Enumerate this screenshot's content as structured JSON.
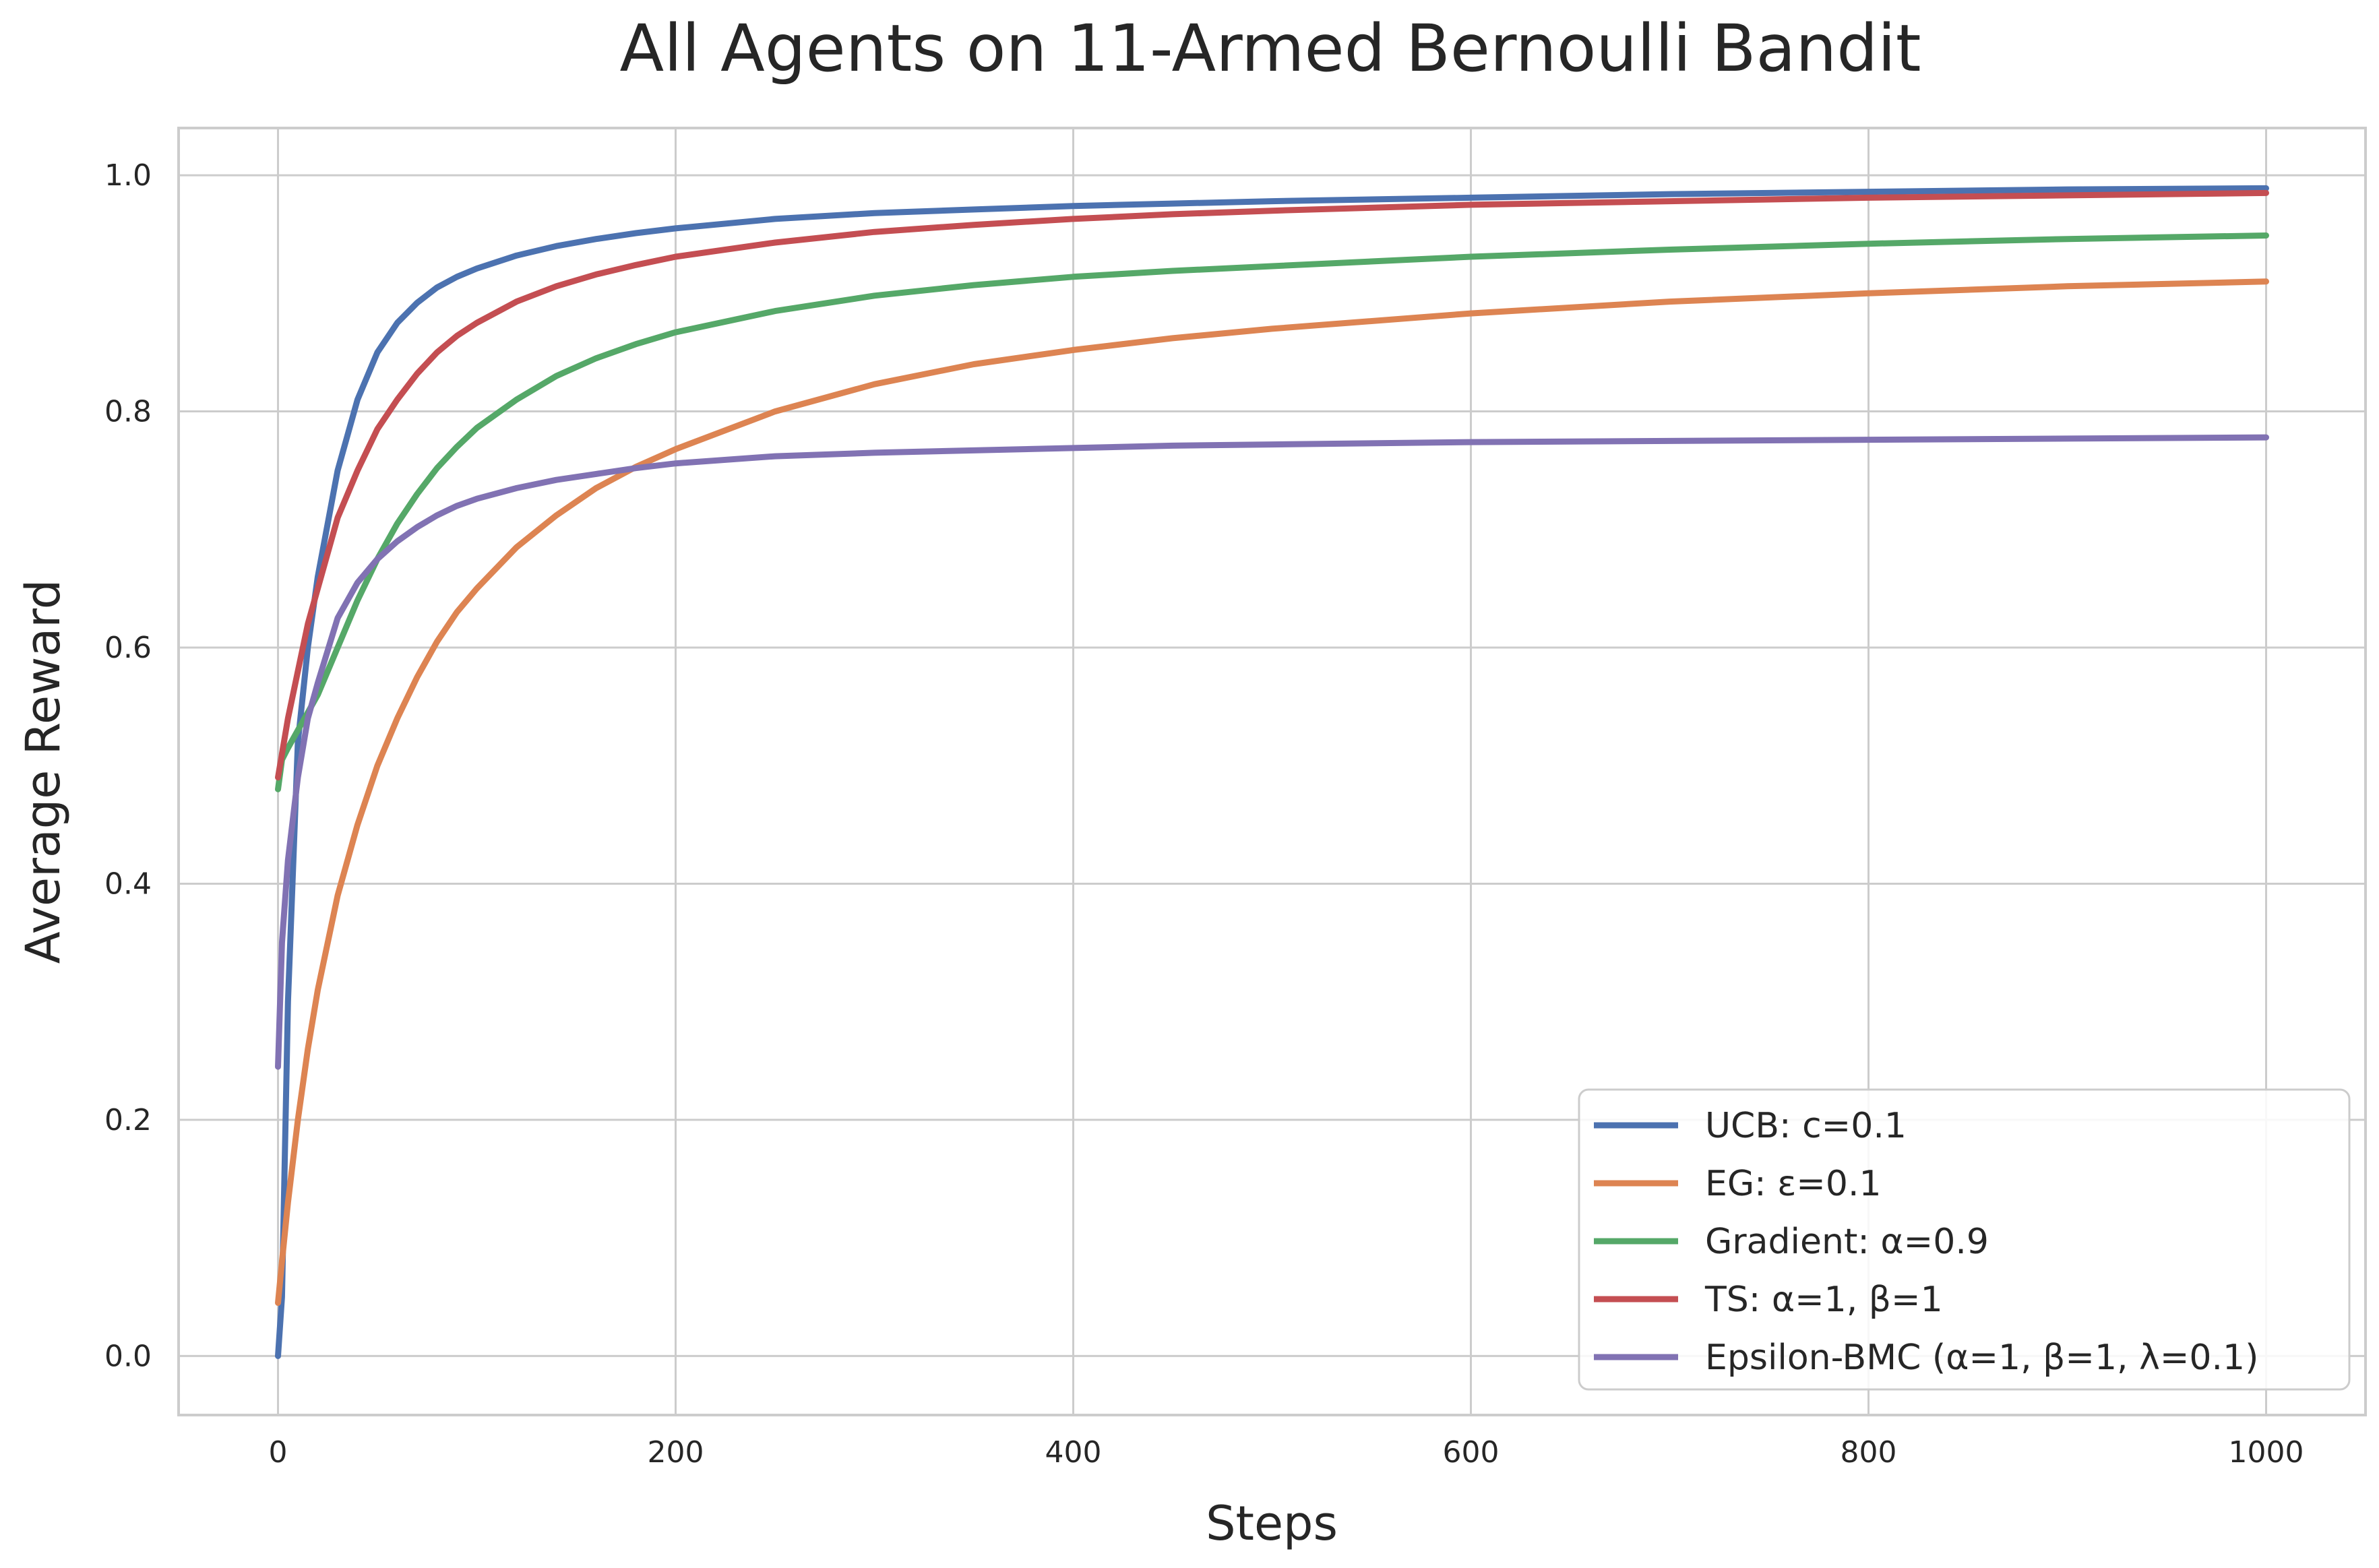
{
  "chart_data": {
    "type": "line",
    "title": "All Agents on 11-Armed Bernoulli Bandit",
    "xlabel": "Steps",
    "ylabel": "Average Reward",
    "xlim": [
      -50,
      1050
    ],
    "ylim": [
      -0.05,
      1.04
    ],
    "xticks": [
      0,
      200,
      400,
      600,
      800,
      1000
    ],
    "xtick_labels": [
      "0",
      "200",
      "400",
      "600",
      "800",
      "1000"
    ],
    "yticks": [
      0.0,
      0.2,
      0.4,
      0.6,
      0.8,
      1.0
    ],
    "ytick_labels": [
      "0.0",
      "0.2",
      "0.4",
      "0.6",
      "0.8",
      "1.0"
    ],
    "grid": true,
    "legend_position": "lower-right",
    "x": [
      0,
      2,
      5,
      10,
      15,
      20,
      30,
      40,
      50,
      60,
      70,
      80,
      90,
      100,
      120,
      140,
      160,
      180,
      200,
      250,
      300,
      350,
      400,
      450,
      500,
      600,
      700,
      800,
      900,
      1000
    ],
    "series": [
      {
        "name": "UCB: c=0.1",
        "color": "#4c72b0",
        "values": [
          0.0,
          0.05,
          0.3,
          0.52,
          0.6,
          0.66,
          0.75,
          0.81,
          0.85,
          0.875,
          0.892,
          0.905,
          0.914,
          0.921,
          0.932,
          0.94,
          0.946,
          0.951,
          0.955,
          0.963,
          0.968,
          0.971,
          0.974,
          0.976,
          0.978,
          0.981,
          0.984,
          0.986,
          0.988,
          0.989
        ]
      },
      {
        "name": "EG: ε=0.1",
        "color": "#dd8452",
        "values": [
          0.045,
          0.08,
          0.13,
          0.2,
          0.26,
          0.31,
          0.39,
          0.45,
          0.5,
          0.54,
          0.575,
          0.605,
          0.63,
          0.65,
          0.685,
          0.712,
          0.735,
          0.753,
          0.768,
          0.8,
          0.823,
          0.84,
          0.852,
          0.862,
          0.87,
          0.883,
          0.893,
          0.9,
          0.906,
          0.91
        ]
      },
      {
        "name": "Gradient: α=0.9",
        "color": "#55a868",
        "values": [
          0.48,
          0.505,
          0.515,
          0.53,
          0.545,
          0.56,
          0.6,
          0.64,
          0.675,
          0.705,
          0.73,
          0.752,
          0.77,
          0.786,
          0.81,
          0.83,
          0.845,
          0.857,
          0.867,
          0.885,
          0.898,
          0.907,
          0.914,
          0.919,
          0.923,
          0.931,
          0.937,
          0.942,
          0.946,
          0.949
        ]
      },
      {
        "name": "TS: α=1, β=1",
        "color": "#c44e52",
        "values": [
          0.49,
          0.51,
          0.54,
          0.58,
          0.62,
          0.65,
          0.71,
          0.75,
          0.785,
          0.81,
          0.832,
          0.85,
          0.864,
          0.875,
          0.893,
          0.906,
          0.916,
          0.924,
          0.931,
          0.943,
          0.952,
          0.958,
          0.963,
          0.967,
          0.97,
          0.975,
          0.978,
          0.981,
          0.983,
          0.985
        ]
      },
      {
        "name": "Epsilon-BMC (α=1, β=1, λ=0.1)",
        "color": "#8172b3",
        "values": [
          0.245,
          0.35,
          0.42,
          0.49,
          0.54,
          0.57,
          0.625,
          0.655,
          0.675,
          0.69,
          0.702,
          0.712,
          0.72,
          0.726,
          0.735,
          0.742,
          0.747,
          0.752,
          0.756,
          0.762,
          0.765,
          0.767,
          0.769,
          0.771,
          0.772,
          0.774,
          0.775,
          0.776,
          0.777,
          0.778
        ]
      }
    ]
  }
}
